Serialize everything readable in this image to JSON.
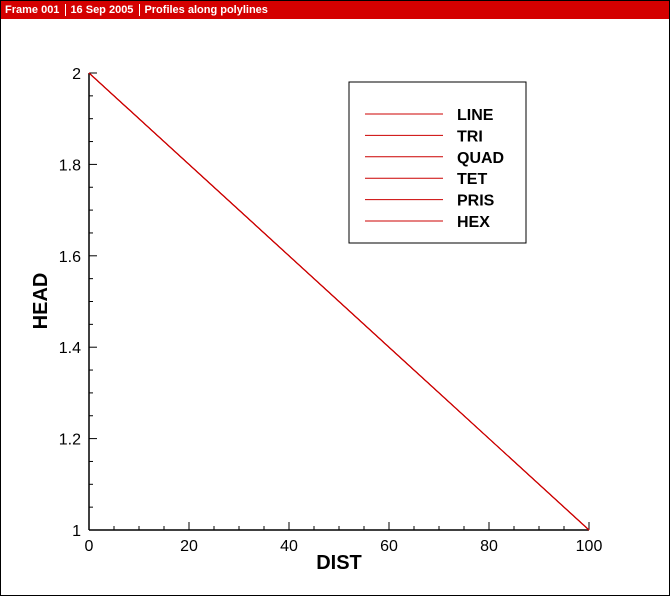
{
  "title_bar": {
    "frame": "Frame 001",
    "date": "16 Sep 2005",
    "description": "Profiles along polylines"
  },
  "colors": {
    "title_bar": "#d40000",
    "series_line": "#cc0000",
    "axis": "#000000"
  },
  "chart_data": {
    "type": "line",
    "title": "",
    "xlabel": "DIST",
    "ylabel": "HEAD",
    "xlim": [
      0,
      100
    ],
    "ylim": [
      1,
      2
    ],
    "x_ticks": [
      0,
      20,
      40,
      60,
      80,
      100
    ],
    "x_tick_labels": [
      "0",
      "20",
      "40",
      "60",
      "80",
      "100"
    ],
    "y_ticks": [
      1,
      1.2,
      1.4,
      1.6,
      1.8,
      2
    ],
    "y_tick_labels": [
      "1",
      "1.2",
      "1.4",
      "1.6",
      "1.8",
      "2"
    ],
    "x_minor_step": 5,
    "y_minor_step": 0.05,
    "grid": false,
    "legend_position": "top-right",
    "series": [
      {
        "name": "LINE",
        "x": [
          0,
          100
        ],
        "y": [
          2,
          1
        ]
      },
      {
        "name": "TRI",
        "x": [
          0,
          100
        ],
        "y": [
          2,
          1
        ]
      },
      {
        "name": "QUAD",
        "x": [
          0,
          100
        ],
        "y": [
          2,
          1
        ]
      },
      {
        "name": "TET",
        "x": [
          0,
          100
        ],
        "y": [
          2,
          1
        ]
      },
      {
        "name": "PRIS",
        "x": [
          0,
          100
        ],
        "y": [
          2,
          1
        ]
      },
      {
        "name": "HEX",
        "x": [
          0,
          100
        ],
        "y": [
          2,
          1
        ]
      }
    ]
  }
}
